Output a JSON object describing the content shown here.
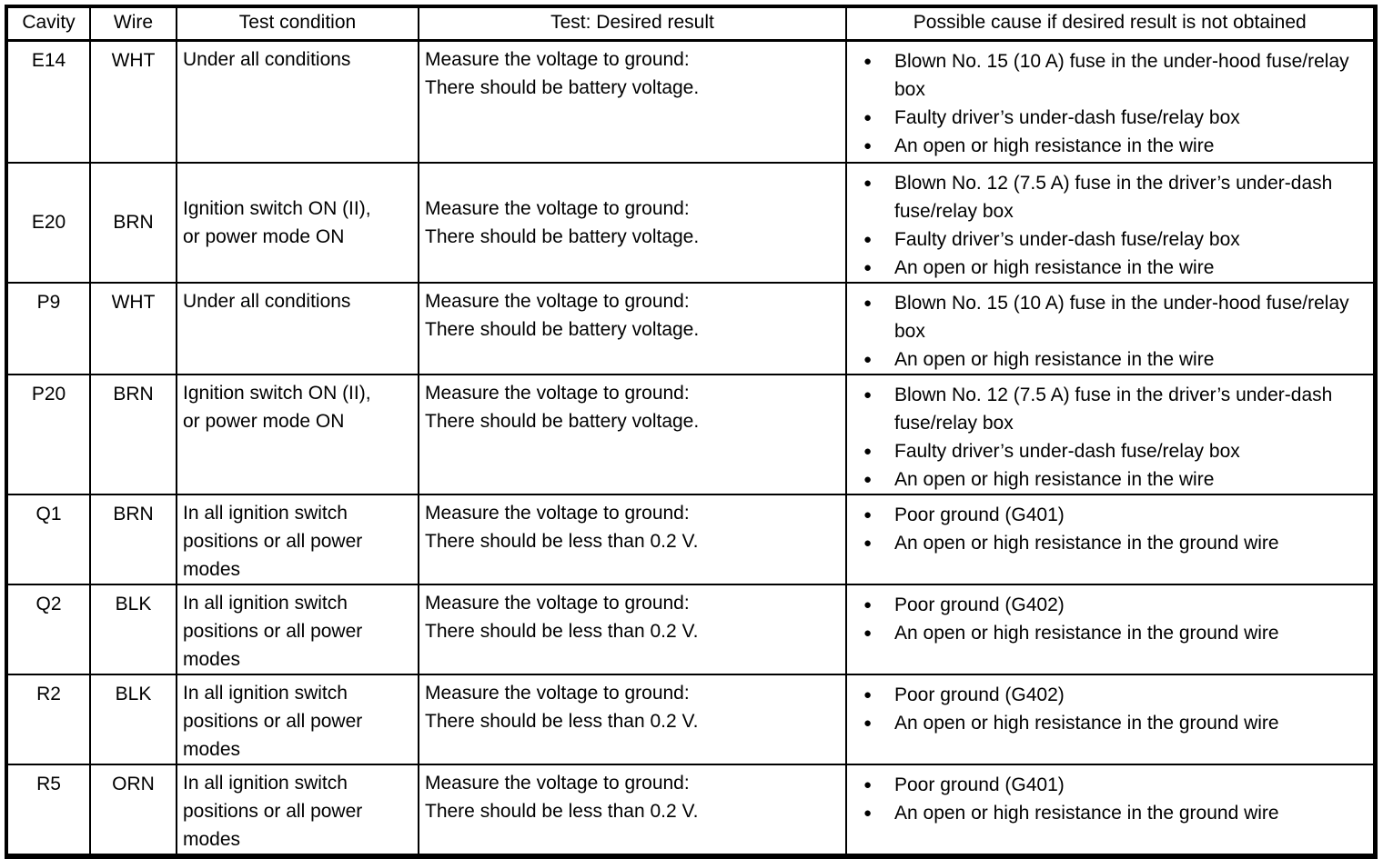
{
  "page": {
    "background_color": "#ffffff",
    "text_color": "#000000",
    "border_color": "#000000",
    "bullet_glyph": "●"
  },
  "table": {
    "headers": {
      "cavity": "Cavity",
      "wire": "Wire",
      "condition": "Test condition",
      "result": "Test: Desired result",
      "cause": "Possible cause if desired result is not obtained"
    },
    "rows": [
      {
        "cavity": "E14",
        "wire": "WHT",
        "condition": "Under all conditions",
        "result": "Measure the voltage to ground:\nThere should be battery voltage.",
        "causes": [
          "Blown No. 15 (10 A) fuse in the under-hood fuse/relay box",
          "Faulty driver’s under-dash fuse/relay box",
          "An open or high resistance in the wire"
        ]
      },
      {
        "cavity": "E20",
        "wire": "BRN",
        "condition": "Ignition switch ON (II),\nor power mode ON",
        "result": "Measure the voltage to ground:\nThere should be battery voltage.",
        "causes": [
          "Blown No. 12 (7.5 A) fuse in the driver’s under-dash fuse/relay box",
          "Faulty driver’s under-dash fuse/relay box",
          "An open or high resistance in the wire"
        ]
      },
      {
        "cavity": "P9",
        "wire": "WHT",
        "condition": "Under all conditions",
        "result": "Measure the voltage to ground:\nThere should be battery voltage.",
        "causes": [
          "Blown No. 15 (10 A) fuse in the under-hood fuse/relay box",
          "An open or high resistance in the wire"
        ]
      },
      {
        "cavity": "P20",
        "wire": "BRN",
        "condition": "Ignition switch ON (II),\nor power mode ON",
        "result": "Measure the voltage to ground:\nThere should be battery voltage.",
        "causes": [
          "Blown No. 12 (7.5 A) fuse in the driver’s under-dash fuse/relay box",
          "Faulty driver’s under-dash fuse/relay box",
          "An open or high resistance in the wire"
        ]
      },
      {
        "cavity": "Q1",
        "wire": "BRN",
        "condition": "In all ignition switch\npositions or all power\nmodes",
        "result": "Measure the voltage to ground:\nThere should be less than 0.2 V.",
        "causes": [
          "Poor ground (G401)",
          "An open or high resistance in the ground wire"
        ]
      },
      {
        "cavity": "Q2",
        "wire": "BLK",
        "condition": "In all ignition switch\npositions or all power\nmodes",
        "result": "Measure the voltage to ground:\nThere should be less than 0.2 V.",
        "causes": [
          "Poor ground (G402)",
          "An open or high resistance in the ground wire"
        ]
      },
      {
        "cavity": "R2",
        "wire": "BLK",
        "condition": "In all ignition switch\npositions or all power\nmodes",
        "result": "Measure the voltage to ground:\nThere should be less than 0.2 V.",
        "causes": [
          "Poor ground (G402)",
          "An open or high resistance in the ground wire"
        ]
      },
      {
        "cavity": "R5",
        "wire": "ORN",
        "condition": "In all ignition switch\npositions or all power\nmodes",
        "result": "Measure the voltage to ground:\nThere should be less than 0.2 V.",
        "causes": [
          "Poor ground (G401)",
          "An open or high resistance in the ground wire"
        ]
      }
    ]
  }
}
